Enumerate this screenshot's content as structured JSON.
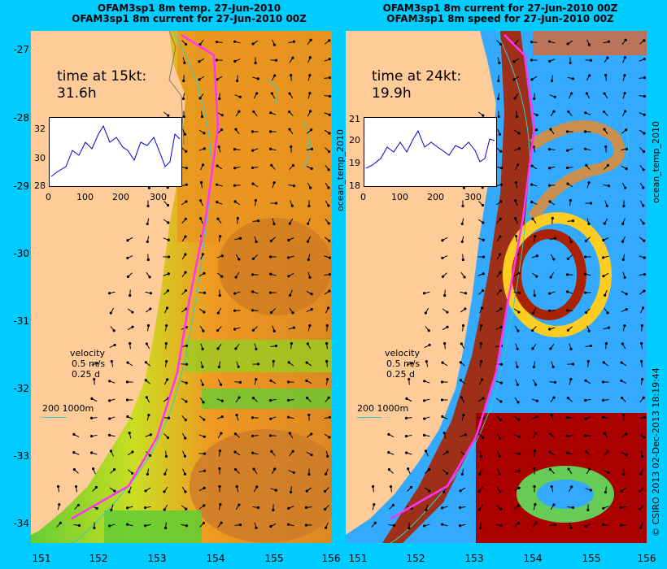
{
  "colors": {
    "background": "#00ccff",
    "land": "#ffcc99",
    "track": "#ff33ff",
    "contour": "#33cccc",
    "arrow": "#000000"
  },
  "left": {
    "title_line1": "OFAM3sp1  8m temp. 27-Jun-2010",
    "title_line2": "OFAM3sp1  8m current for 27-Jun-2010 00Z",
    "time_label": "time at 15kt:",
    "time_value": "31.6h",
    "inset_yticks": [
      "32",
      "30",
      "28"
    ],
    "inset_xticks": [
      "0",
      "100",
      "200",
      "300"
    ],
    "velocity_label": "velocity",
    "velocity_speed": "0.5 m/s",
    "velocity_days": "0.25 d",
    "scale_label": "200  1000m",
    "side_label": "ocean_temp_2010"
  },
  "right": {
    "title_line1": "OFAM3sp1  8m current for 27-Jun-2010 00Z",
    "title_line2": "OFAM3sp1  8m speed for 27-Jun-2010 00Z",
    "time_label": "time at 24kt:",
    "time_value": "19.9h",
    "inset_yticks": [
      "21",
      "20",
      "19",
      "18"
    ],
    "inset_xticks": [
      "0",
      "100",
      "200",
      "300"
    ],
    "velocity_label": "velocity",
    "velocity_speed": "0.5 m/s",
    "velocity_days": "0.25 d",
    "scale_label": "200  1000m",
    "side_label": "ocean_temp_2010"
  },
  "y_ticks": [
    "-27",
    "-28",
    "-29",
    "-30",
    "-31",
    "-32",
    "-33",
    "-34"
  ],
  "x_ticks": [
    "151",
    "152",
    "153",
    "154",
    "155",
    "156"
  ],
  "credit": "© CSIRO 2013   02-Dec-2013 18:19:44"
}
